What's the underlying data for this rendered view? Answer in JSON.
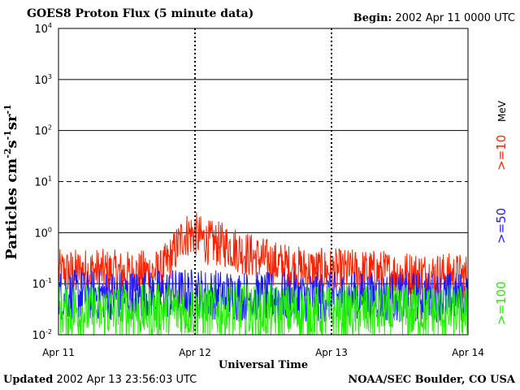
{
  "header": {
    "title": "GOES8 Proton Flux (5 minute data)",
    "begin_label": "Begin:",
    "begin_value": "2002 Apr 11 0000 UTC"
  },
  "footer": {
    "updated_label": "Updated",
    "updated_value": "2002 Apr 13 23:56:03 UTC",
    "credit": "NOAA/SEC Boulder, CO USA"
  },
  "chart_data": {
    "type": "line",
    "title": "GOES8 Proton Flux (5 minute data)",
    "xlabel": "Universal Time",
    "ylabel": "Particles cm-2s-1sr-1",
    "y_scale": "log",
    "ylim": [
      0.01,
      10000
    ],
    "y_ticks": [
      {
        "base": "10",
        "exp": "4"
      },
      {
        "base": "10",
        "exp": "3"
      },
      {
        "base": "10",
        "exp": "2"
      },
      {
        "base": "10",
        "exp": "1"
      },
      {
        "base": "10",
        "exp": "0"
      },
      {
        "base": "10",
        "exp": "-1"
      },
      {
        "base": "10",
        "exp": "-2"
      }
    ],
    "x_ticks": [
      "Apr 11",
      "Apr 12",
      "Apr 13",
      "Apr 14"
    ],
    "xlim": [
      "2002-04-11 00:00",
      "2002-04-14 00:00"
    ],
    "grid": true,
    "legend_position": "right",
    "legend_unit": "MeV",
    "series": [
      {
        "name": ">=10",
        "color": "#ff2200",
        "x": [
          "2002-04-11 00:00",
          "2002-04-11 06:00",
          "2002-04-11 12:00",
          "2002-04-11 18:00",
          "2002-04-11 20:00",
          "2002-04-11 22:00",
          "2002-04-12 00:00",
          "2002-04-12 02:00",
          "2002-04-12 06:00",
          "2002-04-12 10:00",
          "2002-04-12 14:00",
          "2002-04-12 18:00",
          "2002-04-12 22:00",
          "2002-04-13 06:00",
          "2002-04-13 12:00",
          "2002-04-13 18:00",
          "2002-04-14 00:00"
        ],
        "values": [
          0.17,
          0.18,
          0.16,
          0.17,
          0.35,
          0.9,
          0.95,
          0.65,
          0.55,
          0.35,
          0.25,
          0.2,
          0.18,
          0.17,
          0.16,
          0.15,
          0.14
        ]
      },
      {
        "name": ">=50",
        "color": "#1a1aff",
        "x": [
          "2002-04-11 00:00",
          "2002-04-11 12:00",
          "2002-04-12 00:00",
          "2002-04-12 12:00",
          "2002-04-13 00:00",
          "2002-04-13 12:00",
          "2002-04-14 00:00"
        ],
        "values": [
          0.06,
          0.06,
          0.065,
          0.055,
          0.055,
          0.055,
          0.055
        ]
      },
      {
        "name": ">=100",
        "color": "#22ee00",
        "x": [
          "2002-04-11 00:00",
          "2002-04-11 12:00",
          "2002-04-12 00:00",
          "2002-04-12 12:00",
          "2002-04-13 00:00",
          "2002-04-13 12:00",
          "2002-04-14 00:00"
        ],
        "values": [
          0.03,
          0.028,
          0.03,
          0.028,
          0.027,
          0.028,
          0.027
        ]
      }
    ]
  }
}
